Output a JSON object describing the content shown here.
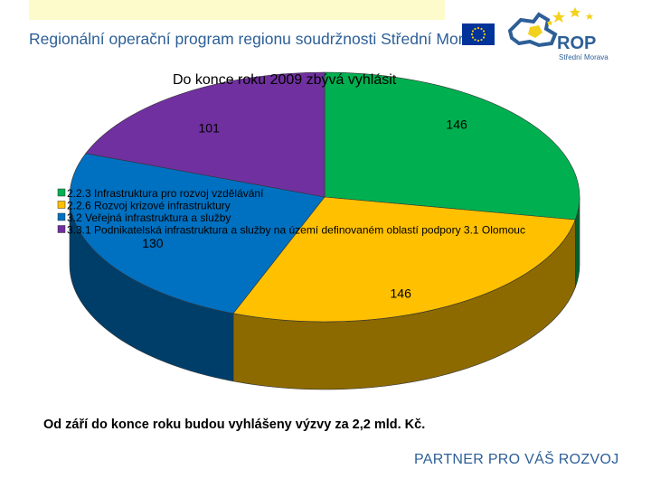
{
  "header": {
    "title": "Regionální operační program regionu soudržnosti Střední Morava",
    "logo_main": "ROP",
    "logo_sub": "Střední Morava"
  },
  "icons": [
    "eu-flag-icon",
    "rop-logo-icon"
  ],
  "colors": {
    "brand_blue": "#2d5f97",
    "top_band": "#fdfbcc",
    "green": "#00b050",
    "yellow": "#ffc000",
    "blue": "#0070c0",
    "purple": "#7030a0"
  },
  "chart_data": {
    "type": "pie",
    "title": "Do konce roku 2009 zbývá vyhlásit",
    "categories": [
      "2.2.3 Infrastruktura pro rozvoj vzdělávání",
      "2.2.6 Rozvoj krizové infrastruktury",
      "3.2 Veřejná infrastruktura a služby",
      "3.3.1 Podnikatelská infrastruktura a služby na území definovaném oblastí podpory 3.1 Olomouc"
    ],
    "values": [
      146,
      146,
      130,
      101
    ],
    "value_labels": [
      "146",
      "146",
      "130",
      "101"
    ],
    "legend_position": "left-center",
    "style": "3d"
  },
  "footnote": "Od září do konce roku budou vyhlášeny výzvy za 2,2 mld. Kč.",
  "slogan": "PARTNER PRO VÁŠ ROZVOJ"
}
